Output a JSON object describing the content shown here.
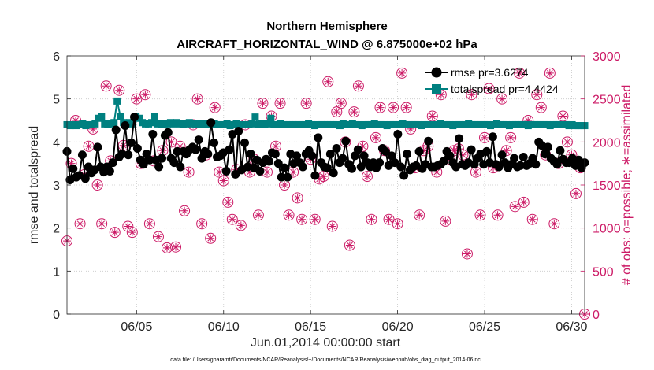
{
  "chart_data": {
    "type": "line",
    "title": "Northern Hemisphere",
    "subtitle": "AIRCRAFT_HORIZONTAL_WIND @ 6.875000e+02 hPa",
    "xlabel": "Jun.01,2014 00:00:00 start",
    "ylabel_left": "rmse and totalspread",
    "ylabel_right": "# of obs: o=possible; ∗=assimilated",
    "footnote": "data file: /Users/gharamti/Documents/NCAR/Reanalysis/~/Documents/NCAR/Reanalysis/webpub/obs_diag_output_2014-06.nc",
    "xlim": [
      1,
      30.75
    ],
    "ylim_left": [
      0,
      6
    ],
    "ylim_right": [
      0,
      3000
    ],
    "x_ticks": [
      {
        "value": 5,
        "label": "06/05"
      },
      {
        "value": 10,
        "label": "06/10"
      },
      {
        "value": 15,
        "label": "06/15"
      },
      {
        "value": 20,
        "label": "06/20"
      },
      {
        "value": 25,
        "label": "06/25"
      },
      {
        "value": 30,
        "label": "06/30"
      }
    ],
    "left_ticks": [
      "0",
      "1",
      "2",
      "3",
      "4",
      "5",
      "6"
    ],
    "right_ticks": [
      "0",
      "500",
      "1000",
      "1500",
      "2000",
      "2500",
      "3000"
    ],
    "colors": {
      "rmse": "#000000",
      "totalspread": "#008080",
      "obs": "#cc1a66",
      "grid": "#c8c8c8",
      "axis": "#262626"
    },
    "legend": [
      {
        "series": "rmse",
        "label": "rmse pr=3.6274"
      },
      {
        "series": "totalspread",
        "label": "totalspread pr=4.4424"
      }
    ],
    "series": [
      {
        "name": "rmse",
        "axis": "left",
        "values": [
          3.78,
          3.12,
          3.38,
          3.18,
          3.22,
          3.7,
          3.15,
          3.42,
          3.28,
          3.35,
          3.88,
          3.42,
          3.3,
          3.42,
          3.32,
          3.52,
          4.28,
          3.65,
          3.72,
          4.38,
          3.7,
          3.98,
          4.58,
          3.85,
          3.58,
          3.48,
          3.72,
          3.58,
          4.18,
          3.58,
          3.42,
          3.62,
          4.15,
          4.22,
          3.62,
          3.52,
          3.78,
          3.42,
          3.78,
          3.72,
          3.82,
          3.88,
          3.82,
          4.05,
          3.62,
          3.78,
          3.72,
          4.45,
          3.98,
          3.65,
          3.68,
          3.75,
          3.32,
          3.82,
          4.18,
          3.25,
          4.25,
          3.35,
          3.98,
          3.42,
          3.72,
          3.4,
          3.58,
          3.32,
          3.52,
          3.6,
          3.55,
          3.75,
          3.72,
          3.5,
          3.18,
          3.4,
          3.18,
          3.72,
          3.5,
          3.68,
          3.52,
          3.42,
          3.72,
          3.8,
          3.68,
          3.22,
          4.1,
          3.52,
          3.42,
          3.4,
          3.72,
          3.28,
          3.85,
          3.52,
          3.62,
          4.02,
          3.48,
          3.38,
          3.68,
          3.82,
          3.42,
          3.68,
          3.52,
          3.42,
          3.52,
          3.4,
          3.52,
          3.85,
          3.78,
          3.45,
          3.68,
          3.52,
          4.18,
          3.42,
          3.22,
          3.72,
          3.35,
          3.42,
          3.45,
          3.78,
          3.38,
          3.48,
          4.02,
          3.42,
          3.42,
          3.45,
          3.48,
          3.55,
          3.78,
          3.68,
          3.52,
          3.42,
          4.08,
          3.48,
          3.45,
          3.52,
          3.82,
          3.48,
          3.62,
          3.72,
          3.48,
          3.78,
          3.52,
          4.12,
          3.48,
          3.42,
          3.7,
          3.52,
          3.4,
          3.48,
          3.62,
          3.42,
          3.45,
          3.65,
          3.45,
          3.5,
          3.62,
          3.48,
          4.0,
          3.92,
          3.72,
          3.88,
          3.62,
          3.55,
          3.48,
          3.8,
          3.6,
          3.52,
          3.52,
          3.62,
          3.45,
          3.58,
          3.4,
          3.52
        ]
      },
      {
        "name": "totalspread",
        "axis": "left",
        "values": [
          4.4,
          4.38,
          4.4,
          4.38,
          4.4,
          4.42,
          4.38,
          4.4,
          4.4,
          4.42,
          4.55,
          4.6,
          4.42,
          4.4,
          4.42,
          4.45,
          4.95,
          4.6,
          4.45,
          4.42,
          4.45,
          4.42,
          4.6,
          4.55,
          4.45,
          4.42,
          4.42,
          4.45,
          4.6,
          4.42,
          4.4,
          4.42,
          4.42,
          4.45,
          4.42,
          4.45,
          4.42,
          4.4,
          4.42,
          4.45,
          4.42,
          4.4,
          4.42,
          4.4,
          4.42,
          4.4,
          4.4,
          4.42,
          4.4,
          4.4,
          4.4,
          4.42,
          4.38,
          4.4,
          4.42,
          4.4,
          4.4,
          4.4,
          4.4,
          4.42,
          4.58,
          4.4,
          4.42,
          4.4,
          4.42,
          4.55,
          4.4,
          4.4,
          4.42,
          4.4,
          4.4,
          4.4,
          4.4,
          4.4,
          4.4,
          4.4,
          4.4,
          4.42,
          4.4,
          4.38,
          4.4,
          4.4,
          4.4,
          4.4,
          4.4,
          4.4,
          4.4,
          4.38,
          4.42,
          4.4,
          4.4,
          4.42,
          4.4,
          4.4,
          4.38,
          4.4,
          4.4,
          4.4,
          4.42,
          4.4,
          4.4,
          4.4,
          4.38,
          4.4,
          4.4,
          4.4,
          4.4,
          4.42,
          4.4,
          4.4,
          4.4,
          4.4,
          4.4,
          4.38,
          4.4,
          4.4,
          4.4,
          4.4,
          4.4,
          4.42,
          4.4,
          4.4,
          4.4,
          4.38,
          4.4,
          4.4,
          4.4,
          4.4,
          4.42,
          4.4,
          4.4,
          4.4,
          4.4,
          4.4,
          4.4,
          4.38,
          4.4,
          4.42,
          4.4,
          4.4,
          4.4,
          4.38,
          4.4,
          4.4,
          4.4,
          4.4,
          4.4,
          4.38,
          4.4,
          4.4,
          4.4,
          4.4,
          4.4,
          4.4,
          4.38,
          4.4,
          4.4,
          4.4,
          4.4,
          4.4,
          4.38,
          4.4,
          4.38,
          4.38,
          4.38,
          4.38
        ]
      }
    ],
    "obs_points": {
      "axis": "right",
      "x": [
        1.0,
        1.25,
        1.5,
        1.75,
        2.0,
        2.25,
        2.5,
        2.75,
        3.0,
        3.25,
        3.5,
        3.75,
        4.0,
        4.25,
        4.5,
        4.75,
        5.0,
        5.25,
        5.5,
        5.75,
        6.0,
        6.25,
        6.5,
        6.75,
        7.0,
        7.25,
        7.5,
        7.75,
        8.0,
        8.25,
        8.5,
        8.75,
        9.0,
        9.25,
        9.5,
        9.75,
        10.0,
        10.25,
        10.5,
        10.75,
        11.0,
        11.25,
        11.5,
        11.75,
        12.0,
        12.25,
        12.5,
        12.75,
        13.0,
        13.25,
        13.5,
        13.75,
        14.0,
        14.25,
        14.5,
        14.75,
        15.0,
        15.25,
        15.5,
        15.75,
        16.0,
        16.25,
        16.5,
        16.75,
        17.0,
        17.25,
        17.5,
        17.75,
        18.0,
        18.25,
        18.5,
        18.75,
        19.0,
        19.25,
        19.5,
        19.75,
        20.0,
        20.25,
        20.5,
        20.75,
        21.0,
        21.25,
        21.5,
        21.75,
        22.0,
        22.25,
        22.5,
        22.75,
        23.0,
        23.25,
        23.5,
        23.75,
        24.0,
        24.25,
        24.5,
        24.75,
        25.0,
        25.25,
        25.5,
        25.75,
        26.0,
        26.25,
        26.5,
        26.75,
        27.0,
        27.25,
        27.5,
        27.75,
        28.0,
        28.25,
        28.5,
        28.75,
        29.0,
        29.25,
        29.5,
        29.75,
        30.0,
        30.25,
        30.5,
        30.75
      ],
      "values": [
        850,
        1750,
        2250,
        1050,
        1620,
        1950,
        2150,
        1500,
        1050,
        2650,
        1780,
        950,
        2600,
        1960,
        1020,
        950,
        2500,
        1750,
        2550,
        1050,
        1780,
        900,
        1900,
        770,
        2000,
        780,
        1950,
        1200,
        1650,
        2200,
        2500,
        1050,
        1850,
        880,
        2400,
        1650,
        1550,
        1300,
        1100,
        1680,
        1030,
        2200,
        1650,
        1800,
        1150,
        2450,
        1650,
        2300,
        1950,
        2450,
        1500,
        1150,
        1650,
        1350,
        1100,
        2450,
        1800,
        1100,
        1570,
        1600,
        2700,
        1020,
        2350,
        2450,
        2000,
        800,
        2350,
        2650,
        1950,
        1600,
        1100,
        2050,
        2400,
        1900,
        1100,
        2400,
        1050,
        2800,
        2400,
        2150,
        1700,
        1150,
        1900,
        1950,
        2300,
        1650,
        2550,
        1080,
        1800,
        1900,
        1920,
        1850,
        700,
        2550,
        1650,
        1150,
        2050,
        2620,
        1700,
        1150,
        2500,
        1900,
        2050,
        1250,
        2800,
        1300,
        2250,
        1100,
        2550,
        2400,
        1850,
        2800,
        1050,
        1750,
        2300,
        2000,
        1850,
        1400,
        1700,
        0
      ]
    }
  }
}
